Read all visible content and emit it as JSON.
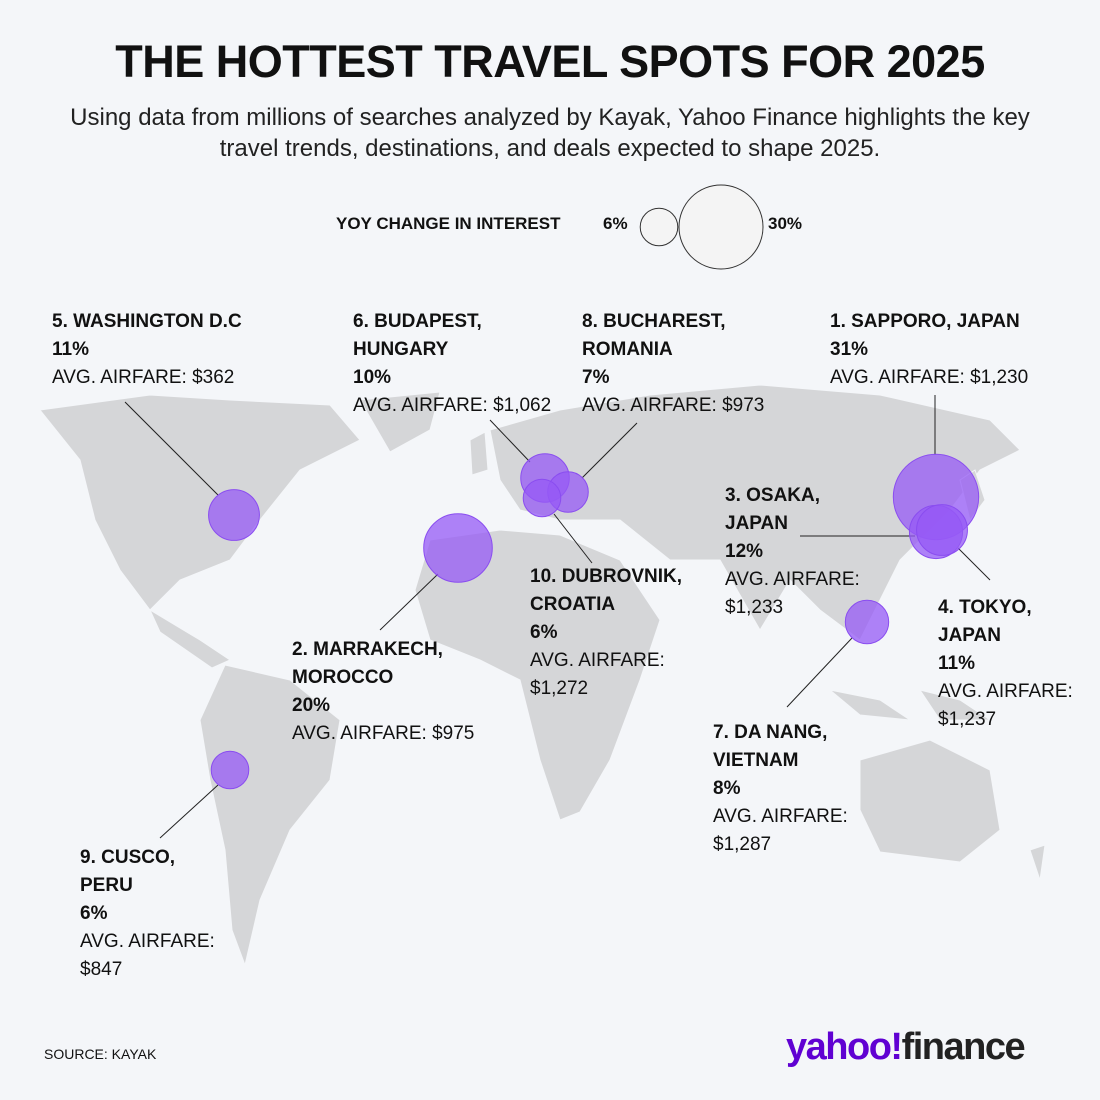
{
  "header": {
    "title": "THE HOTTEST TRAVEL SPOTS FOR 2025",
    "subtitle": "Using data from millions of searches analyzed by Kayak, Yahoo Finance highlights the key travel trends, destinations, and deals expected to shape 2025."
  },
  "legend": {
    "label": "YOY CHANGE IN INTEREST",
    "min": {
      "value": 6,
      "label": "6%"
    },
    "max": {
      "value": 30,
      "label": "30%"
    }
  },
  "destinations": [
    {
      "name": "1. SAPPORO, JAPAN",
      "change": 31,
      "change_label": "31%",
      "airfare": "AVG. AIRFARE: $1,230"
    },
    {
      "name": "2. MARRAKECH, MOROCCO",
      "change": 20,
      "change_label": "20%",
      "airfare": "AVG. AIRFARE: $975"
    },
    {
      "name": "3. OSAKA, JAPAN",
      "change": 12,
      "change_label": "12%",
      "airfare": "AVG. AIRFARE: $1,233"
    },
    {
      "name": "4. TOKYO, JAPAN",
      "change": 11,
      "change_label": "11%",
      "airfare": "AVG. AIRFARE: $1,237"
    },
    {
      "name": "5. WASHINGTON D.C",
      "change": 11,
      "change_label": "11%",
      "airfare": "AVG. AIRFARE: $362"
    },
    {
      "name": "6. BUDAPEST, HUNGARY",
      "change": 10,
      "change_label": "10%",
      "airfare": "AVG. AIRFARE: $1,062"
    },
    {
      "name": "7. DA NANG, VIETNAM",
      "change": 8,
      "change_label": "8%",
      "airfare": "AVG. AIRFARE: $1,287"
    },
    {
      "name": "8. BUCHAREST, ROMANIA",
      "change": 7,
      "change_label": "7%",
      "airfare": "AVG. AIRFARE: $973"
    },
    {
      "name": "9. CUSCO, PERU",
      "change": 6,
      "change_label": "6%",
      "airfare": "AVG. AIRFARE: $847"
    },
    {
      "name": "10. DUBROVNIK, CROATIA",
      "change": 6,
      "change_label": "6%",
      "airfare": "AVG. AIRFARE: $1,272"
    }
  ],
  "footer": {
    "source": "SOURCE:  KAYAK",
    "logo_yahoo": "yahoo!",
    "logo_finance": "finance"
  }
}
